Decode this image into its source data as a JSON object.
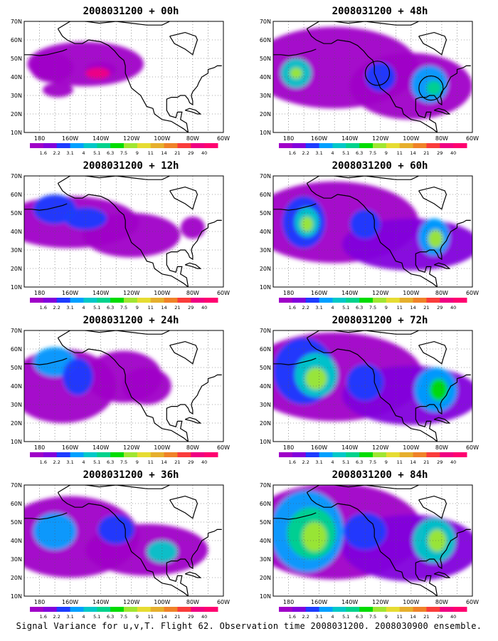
{
  "caption": "Signal Variance for u,v,T. Flight 62. Observation time 2008031200. 2008030900 ensemble.",
  "axes": {
    "lat_labels": [
      "70N",
      "60N",
      "50N",
      "40N",
      "30N",
      "20N",
      "10N"
    ],
    "lon_labels": [
      "180",
      "160W",
      "140W",
      "120W",
      "100W",
      "80W",
      "60W"
    ]
  },
  "colorbar": {
    "labels": [
      "1.6",
      "2.2",
      "3.1",
      "4",
      "5.1",
      "6.3",
      "7.5",
      "9",
      "11",
      "14",
      "21",
      "29",
      "40"
    ],
    "colors": [
      "#a000c8",
      "#8200dc",
      "#1e3cff",
      "#00a0ff",
      "#00c8c8",
      "#00d28c",
      "#00dc00",
      "#a0e632",
      "#e6dc32",
      "#e6af2d",
      "#f08228",
      "#fa3c3c",
      "#f00082",
      "#ff0070"
    ]
  },
  "panels": [
    {
      "id": "p00",
      "title": "2008031200 + 00h"
    },
    {
      "id": "p12",
      "title": "2008031200 + 12h"
    },
    {
      "id": "p24",
      "title": "2008031200 + 24h"
    },
    {
      "id": "p36",
      "title": "2008031200 + 36h"
    },
    {
      "id": "p48",
      "title": "2008031200 + 48h"
    },
    {
      "id": "p60",
      "title": "2008031200 + 60h"
    },
    {
      "id": "p72",
      "title": "2008031200 + 72h"
    },
    {
      "id": "p84",
      "title": "2008031200 + 84h"
    }
  ]
}
